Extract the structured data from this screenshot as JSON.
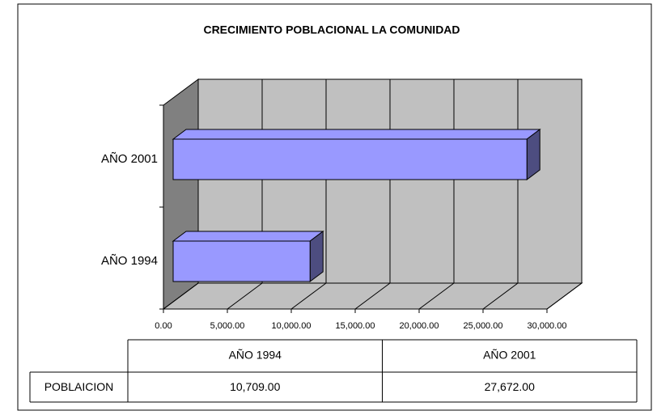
{
  "chart_data": {
    "type": "bar3d_horizontal",
    "title": "CRECIMIENTO POBLACIONAL LA COMUNIDAD",
    "categories": [
      "AÑO 1994",
      "AÑO 2001"
    ],
    "series": [
      {
        "name": "POBLAICION",
        "color": "#9999ff",
        "values": [
          10709,
          27672
        ],
        "value_labels": [
          "10,709.00",
          "27,672.00"
        ]
      }
    ],
    "xlim": [
      0,
      30000
    ],
    "xticks": [
      {
        "value": 0,
        "label": "0.00"
      },
      {
        "value": 5000,
        "label": "5,000.00"
      },
      {
        "value": 10000,
        "label": "10,000.00"
      },
      {
        "value": 15000,
        "label": "15,000.00"
      },
      {
        "value": 20000,
        "label": "20,000.00"
      },
      {
        "value": 25000,
        "label": "25,000.00"
      },
      {
        "value": 30000,
        "label": "30,000.00"
      }
    ],
    "grid": true,
    "data_table": true
  }
}
